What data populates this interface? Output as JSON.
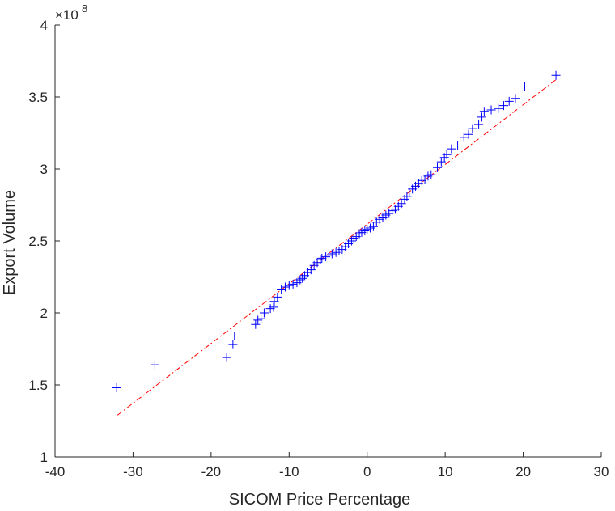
{
  "chart_data": {
    "type": "scatter",
    "title": "",
    "xlabel": "SICOM Price Percentage",
    "ylabel": "Export Volume",
    "xlim": [
      -40,
      30
    ],
    "ylim": [
      1,
      4
    ],
    "y_multiplier": "8",
    "x_ticks": [
      "-40",
      "-30",
      "-20",
      "-10",
      "0",
      "10",
      "20",
      "30"
    ],
    "y_ticks": [
      "1",
      "1.5",
      "2",
      "2.5",
      "3",
      "3.5",
      "4"
    ],
    "grid": false,
    "colors": {
      "points": "#0000ff",
      "fit_line": "#ff0000",
      "axes": "#262626"
    },
    "fit_line": {
      "x": [
        -32,
        24.2
      ],
      "y": [
        1.29,
        3.62
      ],
      "style": "dash-dot"
    },
    "points": [
      [
        -32.1,
        1.48
      ],
      [
        -27.2,
        1.64
      ],
      [
        -18.0,
        1.69
      ],
      [
        -17.2,
        1.78
      ],
      [
        -17.0,
        1.84
      ],
      [
        -14.3,
        1.92
      ],
      [
        -14.0,
        1.95
      ],
      [
        -13.6,
        1.96
      ],
      [
        -13.2,
        2.0
      ],
      [
        -12.4,
        2.03
      ],
      [
        -12.0,
        2.04
      ],
      [
        -11.9,
        2.08
      ],
      [
        -11.5,
        2.11
      ],
      [
        -11.0,
        2.16
      ],
      [
        -10.5,
        2.18
      ],
      [
        -10.0,
        2.19
      ],
      [
        -9.5,
        2.2
      ],
      [
        -9.0,
        2.21
      ],
      [
        -8.6,
        2.23
      ],
      [
        -8.3,
        2.24
      ],
      [
        -8.0,
        2.26
      ],
      [
        -7.6,
        2.28
      ],
      [
        -7.2,
        2.3
      ],
      [
        -6.8,
        2.33
      ],
      [
        -6.4,
        2.35
      ],
      [
        -6.0,
        2.37
      ],
      [
        -5.8,
        2.38
      ],
      [
        -5.3,
        2.39
      ],
      [
        -4.9,
        2.4
      ],
      [
        -4.5,
        2.41
      ],
      [
        -4.0,
        2.42
      ],
      [
        -3.6,
        2.43
      ],
      [
        -3.2,
        2.44
      ],
      [
        -2.8,
        2.46
      ],
      [
        -2.4,
        2.48
      ],
      [
        -2.0,
        2.5
      ],
      [
        -1.7,
        2.52
      ],
      [
        -1.4,
        2.53
      ],
      [
        -1.0,
        2.55
      ],
      [
        -0.7,
        2.56
      ],
      [
        -0.3,
        2.57
      ],
      [
        0.0,
        2.58
      ],
      [
        0.4,
        2.59
      ],
      [
        0.8,
        2.6
      ],
      [
        1.2,
        2.63
      ],
      [
        1.6,
        2.65
      ],
      [
        2.0,
        2.66
      ],
      [
        2.4,
        2.68
      ],
      [
        2.8,
        2.69
      ],
      [
        3.2,
        2.71
      ],
      [
        3.6,
        2.72
      ],
      [
        4.0,
        2.74
      ],
      [
        4.4,
        2.76
      ],
      [
        4.8,
        2.79
      ],
      [
        5.1,
        2.81
      ],
      [
        5.4,
        2.84
      ],
      [
        5.8,
        2.86
      ],
      [
        6.2,
        2.88
      ],
      [
        6.6,
        2.9
      ],
      [
        7.0,
        2.92
      ],
      [
        7.4,
        2.93
      ],
      [
        7.8,
        2.95
      ],
      [
        8.2,
        2.96
      ],
      [
        9.0,
        3.01
      ],
      [
        9.5,
        3.05
      ],
      [
        9.9,
        3.08
      ],
      [
        10.2,
        3.1
      ],
      [
        10.8,
        3.14
      ],
      [
        11.6,
        3.16
      ],
      [
        12.4,
        3.22
      ],
      [
        13.0,
        3.24
      ],
      [
        13.5,
        3.28
      ],
      [
        14.3,
        3.31
      ],
      [
        14.7,
        3.36
      ],
      [
        15.0,
        3.4
      ],
      [
        15.9,
        3.41
      ],
      [
        16.8,
        3.42
      ],
      [
        17.5,
        3.44
      ],
      [
        18.2,
        3.47
      ],
      [
        19.0,
        3.49
      ],
      [
        20.2,
        3.57
      ],
      [
        24.2,
        3.65
      ]
    ]
  }
}
